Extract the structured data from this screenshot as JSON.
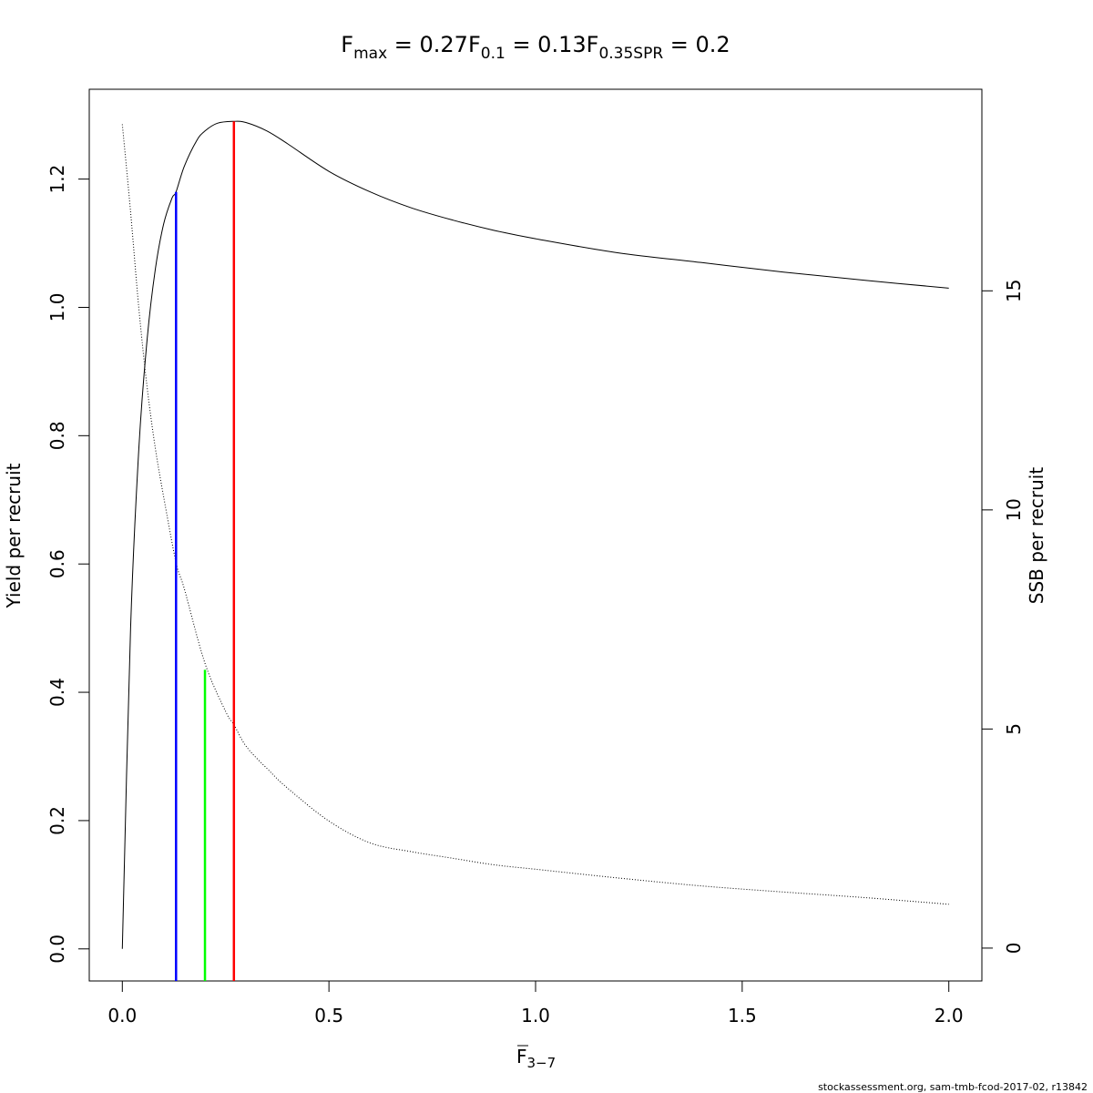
{
  "chart_data": {
    "type": "line",
    "title": {
      "fmax": {
        "base": "F",
        "sub": "max",
        "value": " = 0.27"
      },
      "f01": {
        "base": "F",
        "sub": "0.1",
        "value": " = 0.13"
      },
      "fspr": {
        "base": "F",
        "sub": "0.35SPR",
        "value": " = 0.2"
      }
    },
    "xlabel": {
      "base": "F",
      "sub": "3−7"
    },
    "ylabel": "Yield per recruit",
    "y2label": "SSB per recruit",
    "xlim": [
      -0.08,
      2.08
    ],
    "ylim": [
      -0.05,
      1.34
    ],
    "y2lim": [
      -0.75,
      19.6
    ],
    "xticks": [
      0.0,
      0.5,
      1.0,
      1.5,
      2.0
    ],
    "xtick_labels": [
      "0.0",
      "0.5",
      "1.0",
      "1.5",
      "2.0"
    ],
    "yticks": [
      0.0,
      0.2,
      0.4,
      0.6,
      0.8,
      1.0,
      1.2
    ],
    "ytick_labels": [
      "0.0",
      "0.2",
      "0.4",
      "0.6",
      "0.8",
      "1.0",
      "1.2"
    ],
    "y2ticks": [
      0,
      5,
      10,
      15
    ],
    "y2tick_labels": [
      "0",
      "5",
      "10",
      "15"
    ],
    "grid": false,
    "series": [
      {
        "axis": "left",
        "style": "solid",
        "color": "#000000",
        "x": [
          0.0,
          0.02,
          0.04,
          0.06,
          0.08,
          0.1,
          0.12,
          0.13,
          0.15,
          0.18,
          0.2,
          0.23,
          0.27,
          0.3,
          0.35,
          0.4,
          0.5,
          0.6,
          0.7,
          0.8,
          0.9,
          1.0,
          1.2,
          1.4,
          1.6,
          1.8,
          2.0
        ],
        "y": [
          0.0,
          0.5,
          0.78,
          0.95,
          1.06,
          1.13,
          1.17,
          1.18,
          1.22,
          1.26,
          1.275,
          1.287,
          1.29,
          1.288,
          1.275,
          1.255,
          1.212,
          1.18,
          1.155,
          1.136,
          1.12,
          1.107,
          1.085,
          1.07,
          1.055,
          1.042,
          1.03
        ]
      },
      {
        "axis": "right",
        "style": "dotted",
        "color": "#000000",
        "x": [
          0.0,
          0.02,
          0.04,
          0.06,
          0.08,
          0.1,
          0.13,
          0.15,
          0.2,
          0.25,
          0.27,
          0.3,
          0.35,
          0.4,
          0.5,
          0.6,
          0.7,
          0.8,
          0.9,
          1.0,
          1.2,
          1.4,
          1.6,
          1.8,
          2.0
        ],
        "y": [
          18.8,
          16.8,
          14.6,
          12.8,
          11.4,
          10.3,
          8.8,
          8.2,
          6.5,
          5.4,
          5.1,
          4.6,
          4.1,
          3.65,
          2.9,
          2.4,
          2.2,
          2.05,
          1.9,
          1.8,
          1.6,
          1.42,
          1.28,
          1.15,
          1.0
        ]
      }
    ],
    "reference_lines": [
      {
        "name": "F0.1",
        "x": 0.13,
        "ymin": -0.05,
        "ymax": 1.18,
        "color": "#0000ff"
      },
      {
        "name": "F0.35SPR",
        "x": 0.2,
        "ymin": -0.05,
        "ymax": 0.435,
        "color": "#00ff00"
      },
      {
        "name": "Fmax",
        "x": 0.27,
        "ymin": -0.05,
        "ymax": 1.29,
        "color": "#ff0000"
      }
    ]
  },
  "footer": "stockassessment.org, sam-tmb-fcod-2017-02, r13842"
}
